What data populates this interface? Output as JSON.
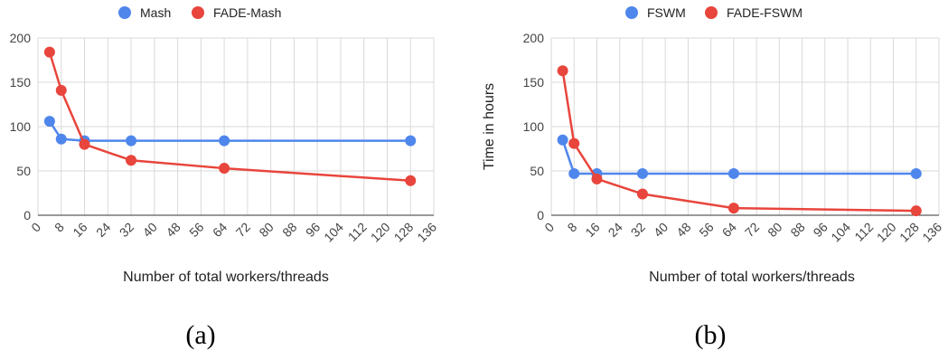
{
  "chart_data": [
    {
      "type": "line",
      "caption": "(a)",
      "xlabel": "Number of total workers/threads",
      "ylabel": "",
      "xlim": [
        0,
        136
      ],
      "ylim": [
        0,
        200
      ],
      "x_ticks": [
        "0",
        "8",
        "16",
        "24",
        "32",
        "40",
        "48",
        "56",
        "64",
        "72",
        "80",
        "88",
        "96",
        "104",
        "112",
        "120",
        "128",
        "136"
      ],
      "y_ticks": [
        "0",
        "50",
        "100",
        "150",
        "200"
      ],
      "grid": true,
      "legend_position": "top",
      "series": [
        {
          "name": "Mash",
          "color": "#4f86ec",
          "x": [
            4,
            8,
            16,
            32,
            64,
            128
          ],
          "y": [
            106,
            86,
            84,
            84,
            84,
            84
          ]
        },
        {
          "name": "FADE-Mash",
          "color": "#e8453c",
          "x": [
            4,
            8,
            16,
            32,
            64,
            128
          ],
          "y": [
            184,
            141,
            80,
            62,
            53,
            39
          ]
        }
      ]
    },
    {
      "type": "line",
      "caption": "(b)",
      "xlabel": "Number of total workers/threads",
      "ylabel": "Time in hours",
      "xlim": [
        0,
        136
      ],
      "ylim": [
        0,
        200
      ],
      "x_ticks": [
        "0",
        "8",
        "16",
        "24",
        "32",
        "40",
        "48",
        "56",
        "64",
        "72",
        "80",
        "88",
        "96",
        "104",
        "112",
        "120",
        "128",
        "136"
      ],
      "y_ticks": [
        "0",
        "50",
        "100",
        "150",
        "200"
      ],
      "grid": true,
      "legend_position": "top",
      "series": [
        {
          "name": "FSWM",
          "color": "#4f86ec",
          "x": [
            4,
            8,
            16,
            32,
            64,
            128
          ],
          "y": [
            85,
            47,
            47,
            47,
            47,
            47
          ]
        },
        {
          "name": "FADE-FSWM",
          "color": "#e8453c",
          "x": [
            4,
            8,
            16,
            32,
            64,
            128
          ],
          "y": [
            163,
            81,
            41,
            24,
            8,
            5
          ]
        }
      ]
    }
  ]
}
